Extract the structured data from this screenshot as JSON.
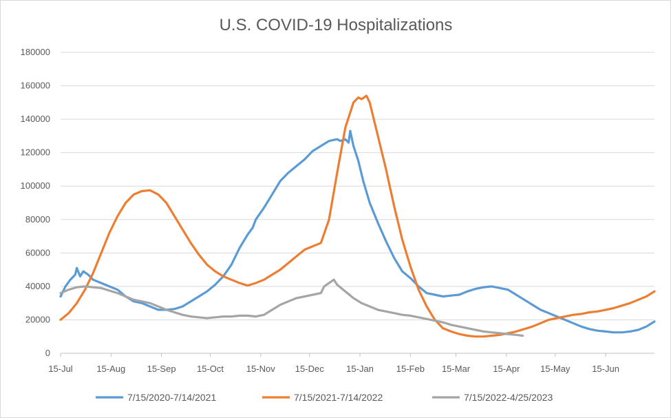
{
  "chart_data": {
    "type": "line",
    "title": "U.S. COVID-19 Hospitalizations",
    "xlabel": "",
    "ylabel": "",
    "x_unit": "day of season (day 0 = 15-Jul)",
    "xlim": [
      0,
      365
    ],
    "ylim": [
      0,
      180000
    ],
    "y_ticks": [
      0,
      20000,
      40000,
      60000,
      80000,
      100000,
      120000,
      140000,
      160000,
      180000
    ],
    "x_ticks": [
      {
        "label": "15-Jul",
        "day": 0
      },
      {
        "label": "15-Aug",
        "day": 31
      },
      {
        "label": "15-Sep",
        "day": 62
      },
      {
        "label": "15-Oct",
        "day": 92
      },
      {
        "label": "15-Nov",
        "day": 123
      },
      {
        "label": "15-Dec",
        "day": 153
      },
      {
        "label": "15-Jan",
        "day": 184
      },
      {
        "label": "15-Feb",
        "day": 215
      },
      {
        "label": "15-Mar",
        "day": 243
      },
      {
        "label": "15-Apr",
        "day": 274
      },
      {
        "label": "15-May",
        "day": 304
      },
      {
        "label": "15-Jun",
        "day": 335
      }
    ],
    "grid": true,
    "legend_position": "bottom",
    "series": [
      {
        "name": "7/15/2020-7/14/2021",
        "color": "#5b9bd5",
        "x": [
          0,
          3,
          6,
          9,
          10,
          12,
          14,
          17,
          20,
          25,
          30,
          35,
          40,
          45,
          50,
          55,
          60,
          65,
          70,
          75,
          80,
          85,
          90,
          95,
          100,
          105,
          110,
          115,
          118,
          120,
          125,
          130,
          135,
          140,
          145,
          150,
          155,
          160,
          165,
          170,
          172,
          175,
          177,
          178,
          180,
          183,
          186,
          190,
          195,
          200,
          205,
          210,
          215,
          220,
          225,
          230,
          235,
          240,
          245,
          250,
          255,
          260,
          265,
          270,
          275,
          280,
          285,
          290,
          295,
          300,
          305,
          310,
          315,
          320,
          325,
          330,
          335,
          340,
          345,
          350,
          355,
          360,
          365
        ],
        "y": [
          34000,
          40000,
          44000,
          47000,
          51000,
          46000,
          49000,
          47000,
          44000,
          42000,
          40000,
          38000,
          34000,
          31000,
          30000,
          28000,
          26000,
          26000,
          26500,
          28000,
          31000,
          34000,
          37000,
          41000,
          46000,
          53000,
          63000,
          71000,
          75000,
          80000,
          87000,
          95000,
          103000,
          108000,
          112000,
          116000,
          121000,
          124000,
          127000,
          128000,
          127000,
          128000,
          126000,
          133000,
          124000,
          115000,
          103000,
          90000,
          78000,
          67000,
          57000,
          49000,
          45000,
          40000,
          36000,
          35000,
          34000,
          34500,
          35000,
          37000,
          38500,
          39500,
          40000,
          39000,
          38000,
          35000,
          32000,
          29000,
          26000,
          24000,
          22000,
          20000,
          18000,
          16000,
          14500,
          13500,
          13000,
          12500,
          12500,
          13000,
          14000,
          16000,
          19000
        ]
      },
      {
        "name": "7/15/2021-7/14/2022",
        "color": "#ed7d31",
        "x": [
          0,
          5,
          10,
          15,
          20,
          25,
          30,
          35,
          40,
          45,
          50,
          55,
          60,
          65,
          70,
          75,
          80,
          85,
          90,
          95,
          100,
          105,
          110,
          115,
          120,
          125,
          130,
          135,
          140,
          145,
          150,
          155,
          160,
          165,
          170,
          175,
          180,
          183,
          185,
          188,
          190,
          195,
          200,
          205,
          210,
          215,
          220,
          225,
          230,
          235,
          240,
          245,
          250,
          255,
          260,
          265,
          270,
          275,
          280,
          285,
          290,
          295,
          300,
          305,
          310,
          315,
          320,
          325,
          330,
          335,
          340,
          345,
          350,
          355,
          360,
          365
        ],
        "y": [
          20000,
          24000,
          30000,
          38000,
          48000,
          60000,
          72000,
          82000,
          90000,
          95000,
          97000,
          97500,
          95000,
          90000,
          82000,
          74000,
          66000,
          59000,
          53000,
          49000,
          46000,
          44000,
          42000,
          40500,
          42000,
          44000,
          47000,
          50000,
          54000,
          58000,
          62000,
          64000,
          66000,
          80000,
          108000,
          135000,
          150000,
          153000,
          152000,
          154000,
          150000,
          130000,
          110000,
          88000,
          68000,
          52000,
          38000,
          28000,
          20000,
          15000,
          13000,
          11500,
          10500,
          10000,
          10000,
          10500,
          11000,
          12000,
          13000,
          14500,
          16000,
          18000,
          20000,
          21000,
          22000,
          23000,
          23500,
          24500,
          25000,
          26000,
          27000,
          28500,
          30000,
          32000,
          34000,
          37000
        ]
      },
      {
        "name": "7/15/2022-4/25/2023",
        "color": "#a5a5a5",
        "x": [
          0,
          5,
          10,
          15,
          20,
          25,
          30,
          35,
          40,
          45,
          50,
          55,
          60,
          65,
          70,
          75,
          80,
          85,
          90,
          95,
          100,
          105,
          110,
          115,
          120,
          125,
          130,
          135,
          140,
          145,
          150,
          155,
          160,
          162,
          165,
          168,
          170,
          175,
          180,
          185,
          190,
          195,
          200,
          205,
          210,
          215,
          220,
          225,
          230,
          235,
          240,
          245,
          250,
          255,
          260,
          265,
          270,
          275,
          280,
          284
        ],
        "y": [
          36000,
          38000,
          39500,
          40000,
          39500,
          39000,
          37500,
          36000,
          34000,
          32000,
          31000,
          30000,
          28000,
          26000,
          24500,
          23000,
          22000,
          21500,
          21000,
          21500,
          22000,
          22000,
          22500,
          22500,
          22000,
          23000,
          26000,
          29000,
          31000,
          33000,
          34000,
          35000,
          36000,
          40000,
          42000,
          44000,
          41000,
          37000,
          33000,
          30000,
          28000,
          26000,
          25000,
          24000,
          23000,
          22500,
          21500,
          20500,
          19500,
          18500,
          17000,
          16000,
          15000,
          14000,
          13000,
          12500,
          12000,
          11500,
          11000,
          10500
        ]
      }
    ]
  }
}
